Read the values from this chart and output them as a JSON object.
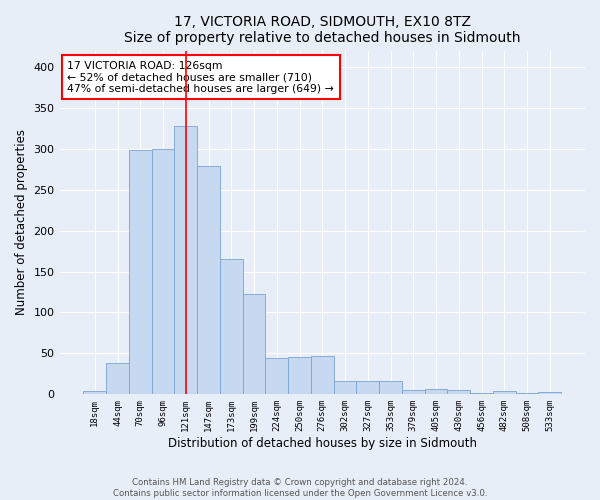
{
  "title1": "17, VICTORIA ROAD, SIDMOUTH, EX10 8TZ",
  "title2": "Size of property relative to detached houses in Sidmouth",
  "xlabel": "Distribution of detached houses by size in Sidmouth",
  "ylabel": "Number of detached properties",
  "bar_labels": [
    "18sqm",
    "44sqm",
    "70sqm",
    "96sqm",
    "121sqm",
    "147sqm",
    "173sqm",
    "199sqm",
    "224sqm",
    "250sqm",
    "276sqm",
    "302sqm",
    "327sqm",
    "353sqm",
    "379sqm",
    "405sqm",
    "430sqm",
    "456sqm",
    "482sqm",
    "508sqm",
    "533sqm"
  ],
  "bar_heights": [
    4,
    38,
    298,
    300,
    328,
    279,
    165,
    122,
    44,
    46,
    47,
    16,
    16,
    16,
    5,
    6,
    5,
    2,
    4,
    2,
    3
  ],
  "bar_color": "#c6d9f1",
  "bar_edgecolor": "#7ba3d4",
  "vline_x_index": 4,
  "vline_color": "red",
  "annotation_text": "17 VICTORIA ROAD: 126sqm\n← 52% of detached houses are smaller (710)\n47% of semi-detached houses are larger (649) →",
  "ylim": [
    0,
    420
  ],
  "yticks": [
    0,
    50,
    100,
    150,
    200,
    250,
    300,
    350,
    400
  ],
  "footer_text": "Contains HM Land Registry data © Crown copyright and database right 2024.\nContains public sector information licensed under the Open Government Licence v3.0.",
  "bg_color": "#e8eef8",
  "axes_bg_color": "#e8eef8"
}
